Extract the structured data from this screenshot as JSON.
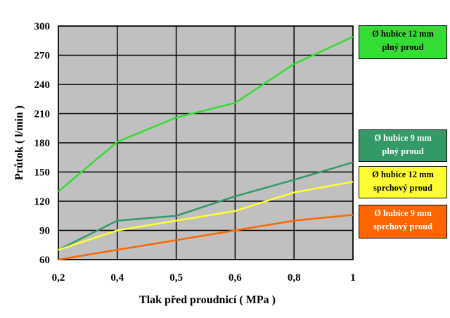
{
  "chart_data": {
    "type": "line",
    "title": "",
    "xlabel": "Tlak před proudnicí  ( MPa )",
    "ylabel": "Průtok ( l/min )",
    "x_ticks": [
      "0,2",
      "0,4",
      "0,5",
      "0,6",
      "0,8",
      "1"
    ],
    "y_ticks": [
      "60",
      "90",
      "120",
      "150",
      "180",
      "210",
      "240",
      "270",
      "300"
    ],
    "ylim": [
      60,
      300
    ],
    "grid": true,
    "plot_background": "#c0c0c0",
    "legend_position": "right",
    "series": [
      {
        "name_line1": "Ø hubice 12 mm",
        "name_line2": "plný proud",
        "color": "#33dd33",
        "legend_bg": "#33dd33",
        "legend_text_color": "#000000",
        "values": [
          130,
          181,
          206,
          221,
          261,
          289
        ]
      },
      {
        "name_line1": "Ø hubice 9 mm",
        "name_line2": "plný proud",
        "color": "#339966",
        "legend_bg": "#339966",
        "legend_text_color": "#ffffff",
        "values": [
          70,
          100,
          105,
          125,
          142,
          160
        ]
      },
      {
        "name_line1": "Ø hubice 12 mm",
        "name_line2": "sprchový proud",
        "color": "#ffff33",
        "legend_bg": "#ffff33",
        "legend_text_color": "#000000",
        "values": [
          70,
          90,
          100,
          110,
          129,
          140
        ]
      },
      {
        "name_line1": "Ø hubice 9 mm",
        "name_line2": "sprchový proud",
        "color": "#ff6600",
        "legend_bg": "#ff6600",
        "legend_text_color": "#ffffff",
        "values": [
          60,
          70,
          80,
          90,
          100,
          106
        ]
      }
    ]
  }
}
